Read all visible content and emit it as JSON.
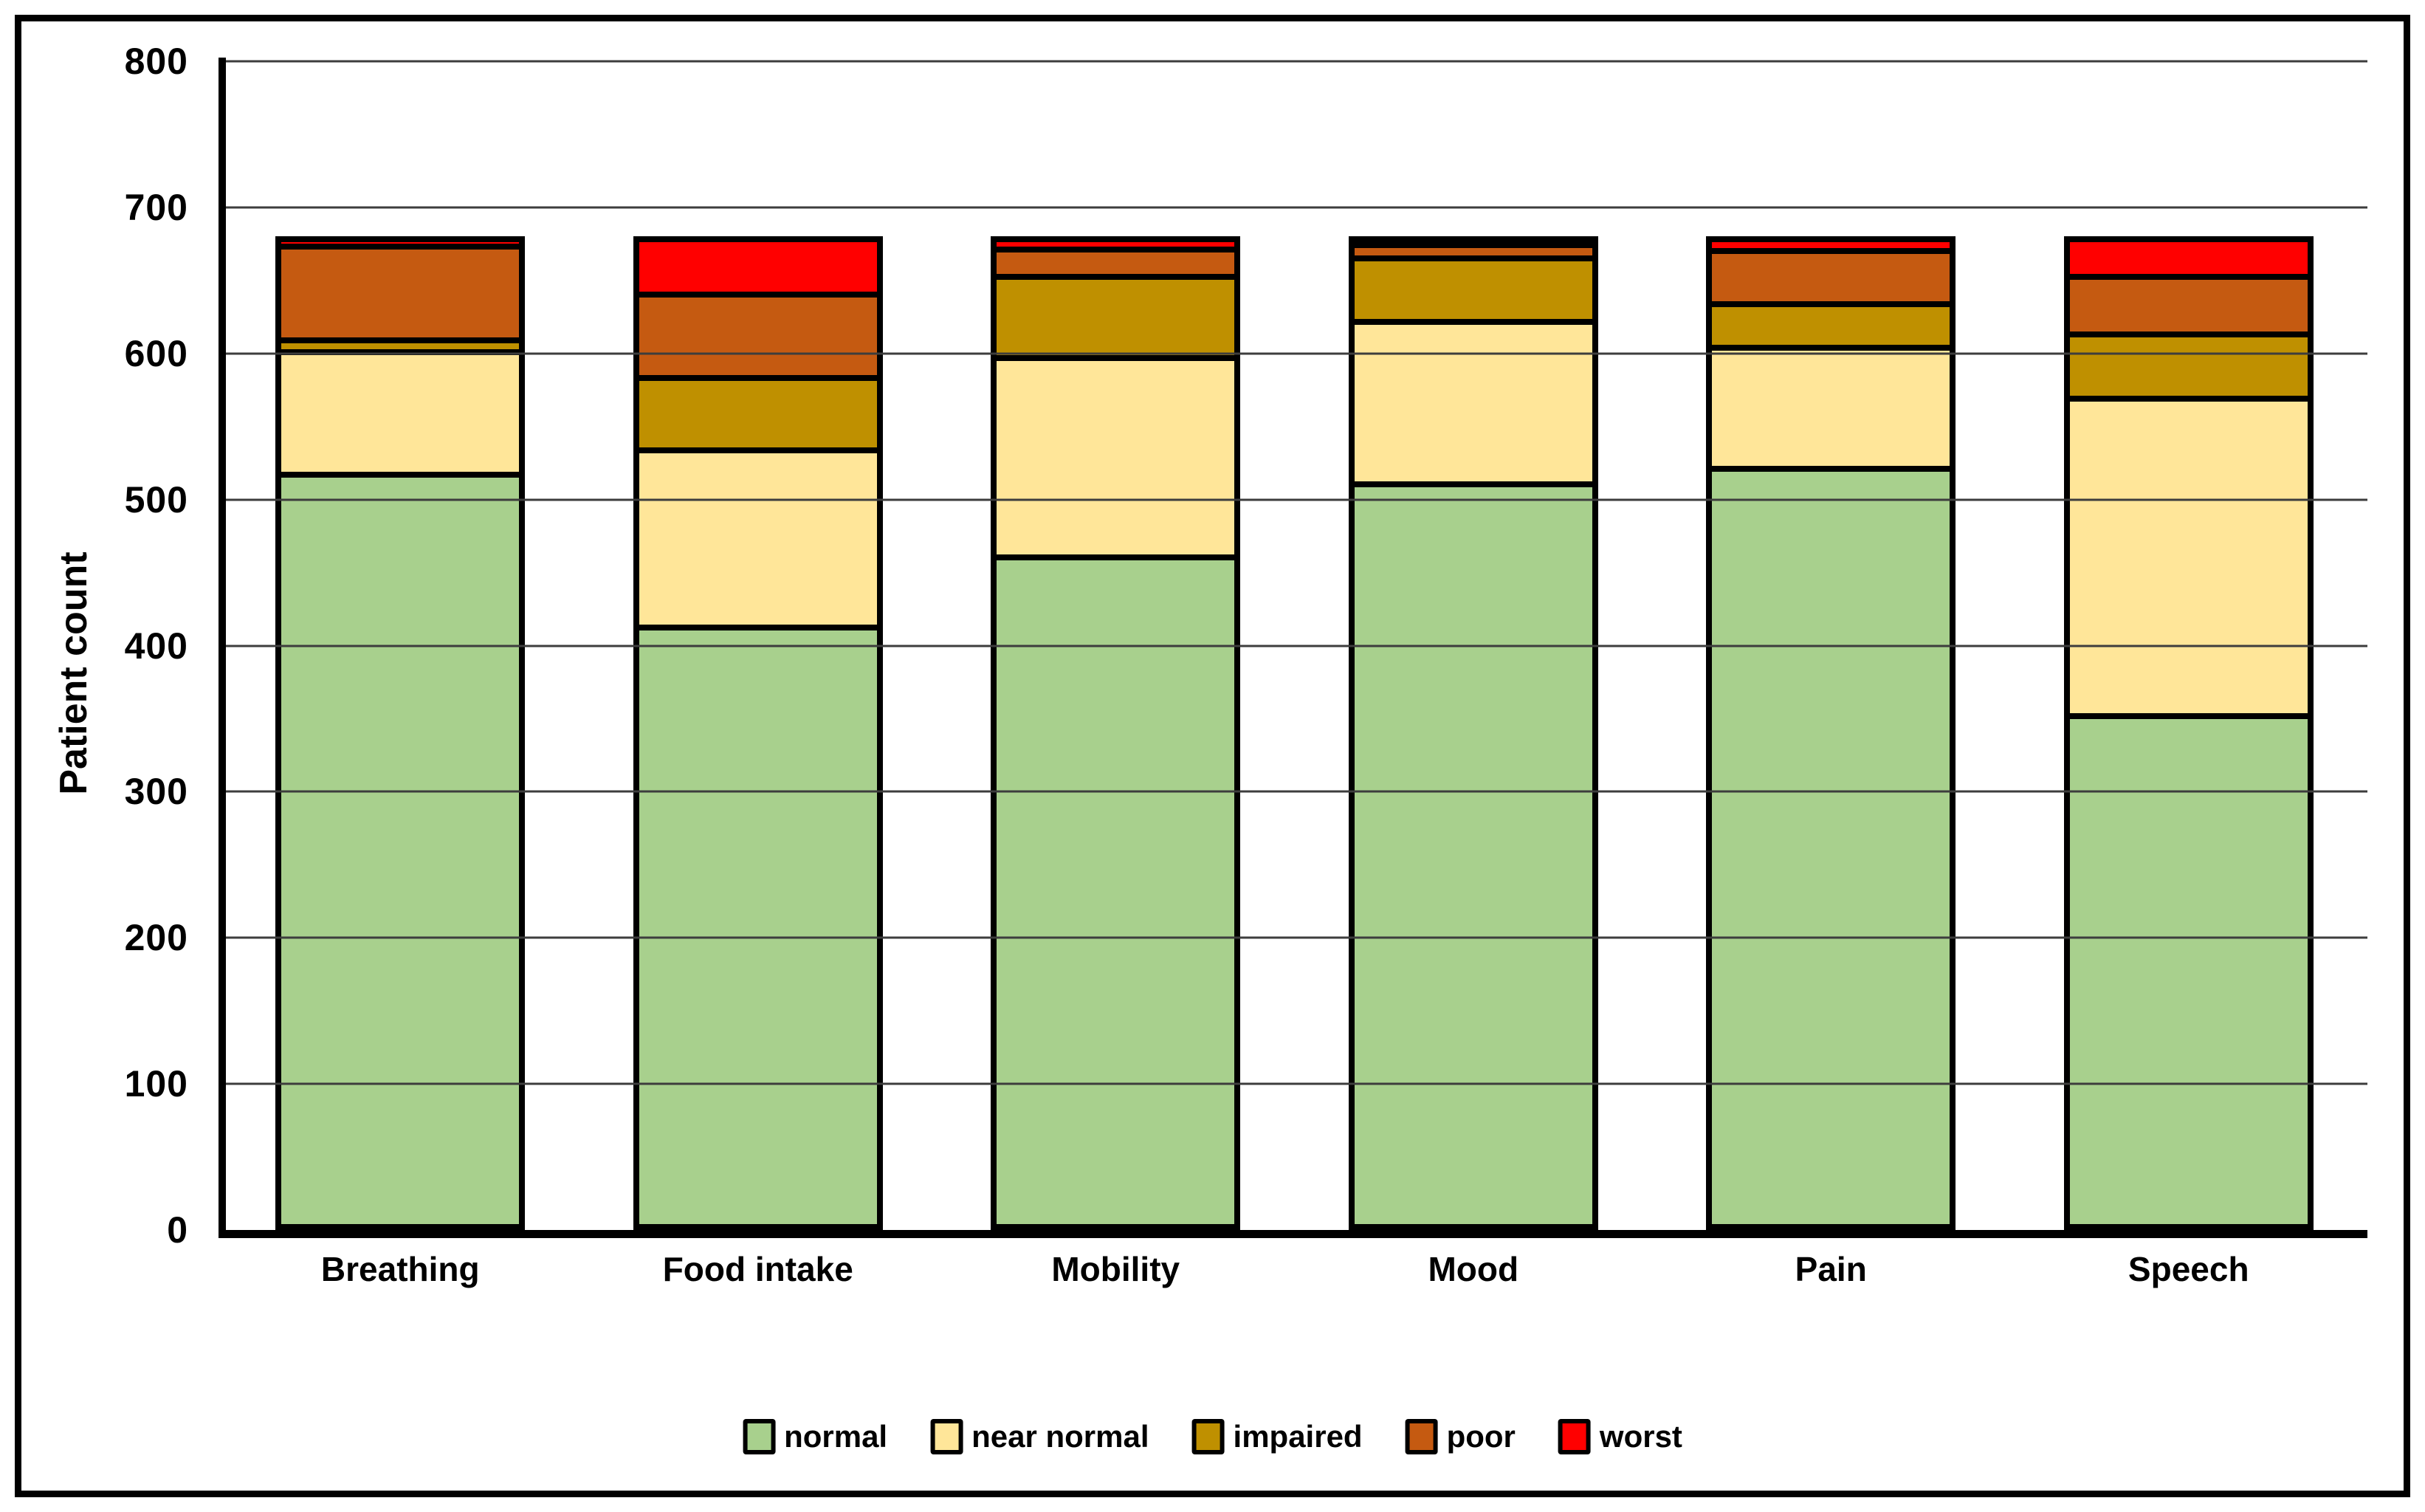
{
  "figure": {
    "background": "#FFFFFF",
    "frame_border_color": "#000000",
    "gridline_color": "#3D3D3D",
    "axis_color": "#000000"
  },
  "chart_data": {
    "type": "bar",
    "stacked": true,
    "title": "",
    "xlabel": "",
    "ylabel": "Patient count",
    "ylim": [
      0,
      800
    ],
    "yticks": [
      0,
      100,
      200,
      300,
      400,
      500,
      600,
      700,
      800
    ],
    "grid": "horizontal",
    "legend_position": "bottom",
    "bar_outline_color": "#000000",
    "categories": [
      "Breathing",
      "Food intake",
      "Mobility",
      "Mood",
      "Pain",
      "Speech"
    ],
    "series": [
      {
        "name": "normal",
        "color": "#A8D08D",
        "values": [
          517,
          411,
          460,
          512,
          521,
          350
        ]
      },
      {
        "name": "near normal",
        "color": "#FFE699",
        "values": [
          85,
          123,
          138,
          113,
          84,
          220
        ]
      },
      {
        "name": "impaired",
        "color": "#BF9000",
        "values": [
          8,
          50,
          56,
          44,
          30,
          44
        ]
      },
      {
        "name": "poor",
        "color": "#C55A11",
        "values": [
          65,
          58,
          19,
          9,
          37,
          40
        ]
      },
      {
        "name": "worst",
        "color": "#FF0000",
        "values": [
          5,
          38,
          7,
          2,
          8,
          26
        ]
      }
    ],
    "totals": [
      680,
      680,
      680,
      680,
      680,
      680
    ]
  }
}
